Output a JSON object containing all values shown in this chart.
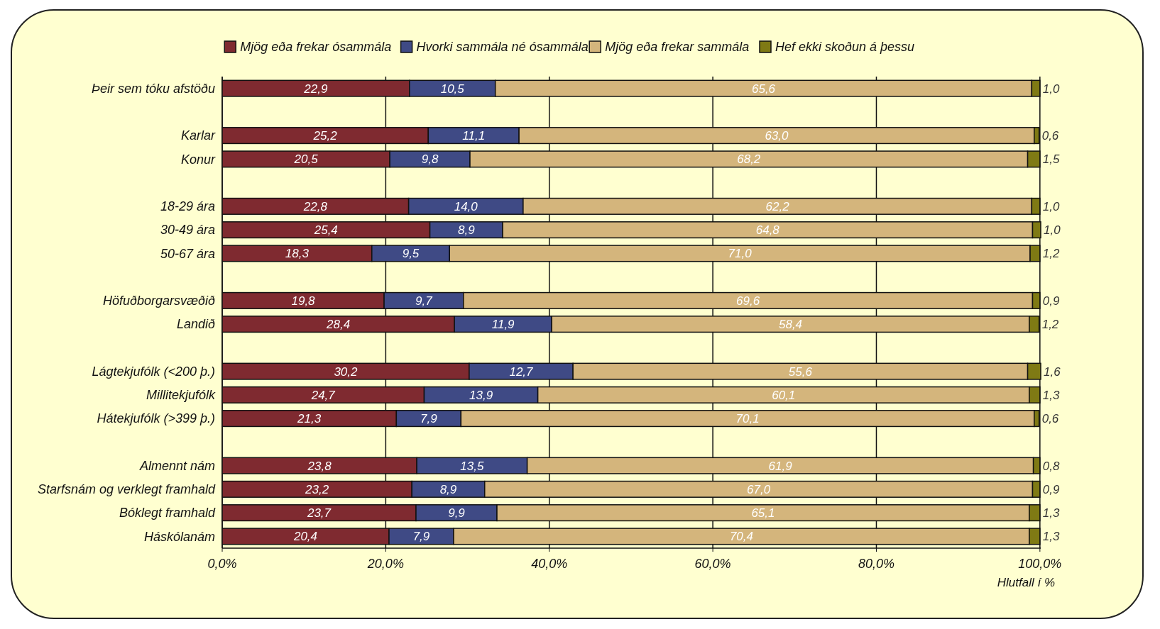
{
  "chart_data": {
    "type": "bar",
    "orientation": "horizontal",
    "stacked": true,
    "legend": "top",
    "grid": "x",
    "xlabel": "Hlutfall í %",
    "categories": [
      "Þeir sem tóku afstöðu",
      null,
      "Karlar",
      "Konur",
      null,
      "18-29 ára",
      "30-49 ára",
      "50-67 ára",
      null,
      "Höfuðborgarsvæðið",
      "Landið",
      null,
      "Lágtekjufólk (<200 þ.)",
      "Millitekjufólk",
      "Hátekjufólk (>399 þ.)",
      null,
      "Almennt nám",
      "Starfsnám og verklegt framhald",
      "Bóklegt framhald",
      "Háskólanám"
    ],
    "xlim": [
      0,
      100.1
    ],
    "xticks": [
      {
        "value": 0,
        "label": "0,0%"
      },
      {
        "value": 20,
        "label": "20,0%"
      },
      {
        "value": 40,
        "label": "40,0%"
      },
      {
        "value": 60,
        "label": "60,0%"
      },
      {
        "value": 80,
        "label": "80,0%"
      },
      {
        "value": 100,
        "label": "100,0%"
      }
    ],
    "series": [
      {
        "name": "Mjög eða frekar ósammála",
        "color": "#7f2a30",
        "values": [
          22.9,
          null,
          25.2,
          20.5,
          null,
          22.8,
          25.4,
          18.3,
          null,
          19.8,
          28.4,
          null,
          30.2,
          24.7,
          21.3,
          null,
          23.8,
          23.2,
          23.7,
          20.4
        ],
        "value_labels": [
          "22,9",
          null,
          "25,2",
          "20,5",
          null,
          "22,8",
          "25,4",
          "18,3",
          null,
          "19,8",
          "28,4",
          null,
          "30,2",
          "24,7",
          "21,3",
          null,
          "23,8",
          "23,2",
          "23,7",
          "20,4"
        ]
      },
      {
        "name": "Hvorki sammála né ósammála",
        "color": "#3f4a85",
        "values": [
          10.5,
          null,
          11.1,
          9.8,
          null,
          14.0,
          8.9,
          9.5,
          null,
          9.7,
          11.9,
          null,
          12.7,
          13.9,
          7.9,
          null,
          13.5,
          8.9,
          9.9,
          7.9
        ],
        "value_labels": [
          "10,5",
          null,
          "11,1",
          "9,8",
          null,
          "14,0",
          "8,9",
          "9,5",
          null,
          "9,7",
          "11,9",
          null,
          "12,7",
          "13,9",
          "7,9",
          null,
          "13,5",
          "8,9",
          "9,9",
          "7,9"
        ]
      },
      {
        "name": "Mjög eða frekar sammála",
        "color": "#d4b57c",
        "values": [
          65.6,
          null,
          63.0,
          68.2,
          null,
          62.2,
          64.8,
          71.0,
          null,
          69.6,
          58.4,
          null,
          55.6,
          60.1,
          70.1,
          null,
          61.9,
          67.0,
          65.1,
          70.4
        ],
        "value_labels": [
          "65,6",
          null,
          "63,0",
          "68,2",
          null,
          "62,2",
          "64,8",
          "71,0",
          null,
          "69,6",
          "58,4",
          null,
          "55,6",
          "60,1",
          "70,1",
          null,
          "61,9",
          "67,0",
          "65,1",
          "70,4"
        ]
      },
      {
        "name": "Hef ekki skoðun á þessu",
        "color": "#7f7a14",
        "values": [
          1.0,
          null,
          0.6,
          1.5,
          null,
          1.0,
          1.0,
          1.2,
          null,
          0.9,
          1.2,
          null,
          1.6,
          1.3,
          0.6,
          null,
          0.8,
          0.9,
          1.3,
          1.3
        ],
        "value_labels": [
          "1,0",
          null,
          "0,6",
          "1,5",
          null,
          "1,0",
          "1,0",
          "1,2",
          null,
          "0,9",
          "1,2",
          null,
          "1,6",
          "1,3",
          "0,6",
          null,
          "0,8",
          "0,9",
          "1,3",
          "1,3"
        ]
      }
    ]
  }
}
